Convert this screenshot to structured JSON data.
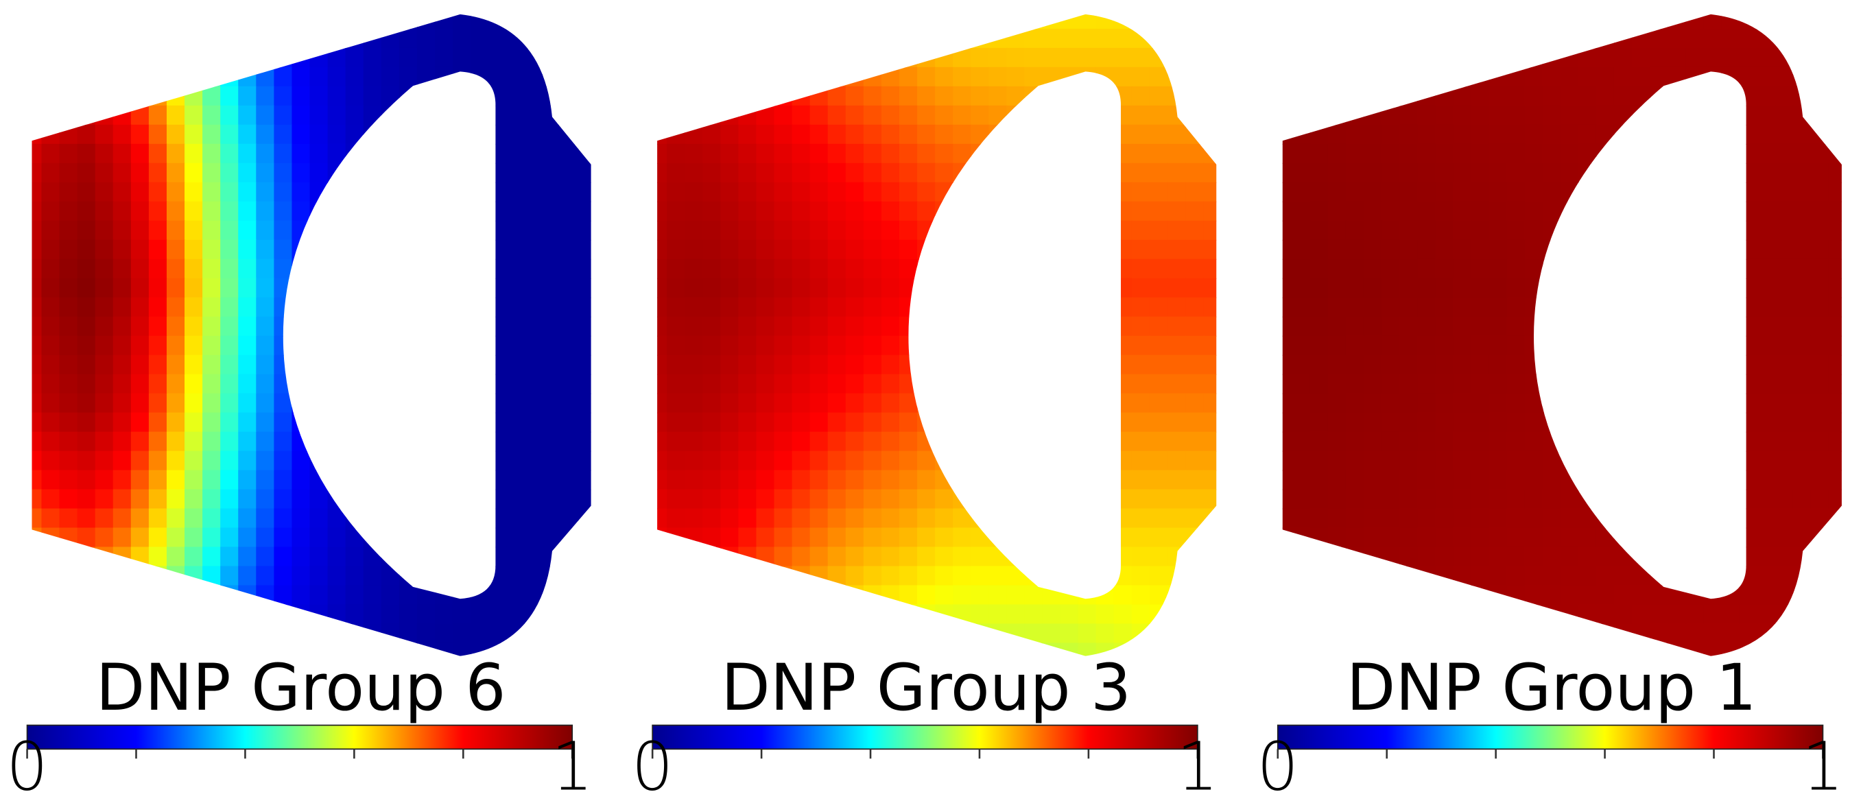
{
  "panels": [
    {
      "title": "DNP Group 6",
      "scale_min": "0",
      "scale_max": "1",
      "levels": [
        [
          0.9,
          0.97,
          0.99,
          0.95,
          0.85,
          0.7,
          0.55,
          0.42,
          0.3,
          0.2,
          0.13,
          0.08,
          0.05,
          0.03,
          0.02,
          0.02,
          0.02,
          0.02,
          0.02
        ],
        [
          0.86,
          0.92,
          0.94,
          0.88,
          0.78,
          0.64,
          0.5,
          0.38,
          0.27,
          0.18,
          0.12,
          0.07,
          0.05,
          0.03,
          0.02,
          0.02,
          0.02,
          0.02,
          0.02
        ],
        [
          0.7,
          0.74,
          0.76,
          0.72,
          0.64,
          0.53,
          0.42,
          0.31,
          0.22,
          0.15,
          0.1,
          0.06,
          0.04,
          0.03,
          0.02,
          0.02,
          0.02,
          0.02,
          0.02
        ],
        [
          0.5,
          0.53,
          0.54,
          0.52,
          0.46,
          0.38,
          0.3,
          0.22,
          0.16,
          0.11,
          0.07,
          0.05,
          0.03,
          0.02,
          0.02,
          0.02,
          0.02,
          0.02,
          0.02
        ]
      ]
    },
    {
      "title": "DNP Group 3",
      "scale_min": "0",
      "scale_max": "1",
      "levels": [
        [
          0.93,
          0.95,
          0.95,
          0.93,
          0.91,
          0.89,
          0.86,
          0.84,
          0.82,
          0.8,
          0.79,
          0.78,
          0.77,
          0.77,
          0.77,
          0.76,
          0.76,
          0.76,
          0.76
        ],
        [
          0.9,
          0.92,
          0.91,
          0.88,
          0.85,
          0.82,
          0.79,
          0.77,
          0.75,
          0.73,
          0.72,
          0.71,
          0.7,
          0.7,
          0.7,
          0.7,
          0.7,
          0.7,
          0.7
        ],
        [
          0.82,
          0.84,
          0.83,
          0.79,
          0.75,
          0.72,
          0.69,
          0.67,
          0.66,
          0.64,
          0.63,
          0.63,
          0.63,
          0.63,
          0.63,
          0.63,
          0.63,
          0.63,
          0.63
        ],
        [
          0.72,
          0.73,
          0.71,
          0.67,
          0.64,
          0.61,
          0.59,
          0.57,
          0.56,
          0.55,
          0.55,
          0.55,
          0.55,
          0.55,
          0.56,
          0.57,
          0.58,
          0.58,
          0.58
        ]
      ]
    },
    {
      "title": "DNP Group 1",
      "scale_min": "0",
      "scale_max": "1",
      "levels": [
        [
          0.985,
          0.985,
          0.98,
          0.98,
          0.975,
          0.975,
          0.97,
          0.97,
          0.965,
          0.965,
          0.96,
          0.96,
          0.955,
          0.955,
          0.955,
          0.955,
          0.955,
          0.955,
          0.955
        ],
        [
          0.975,
          0.975,
          0.972,
          0.97,
          0.968,
          0.965,
          0.962,
          0.96,
          0.958,
          0.955,
          0.953,
          0.952,
          0.95,
          0.95,
          0.95,
          0.95,
          0.95,
          0.95,
          0.95
        ],
        [
          0.965,
          0.965,
          0.962,
          0.96,
          0.958,
          0.955,
          0.952,
          0.95,
          0.948,
          0.946,
          0.945,
          0.944,
          0.943,
          0.943,
          0.943,
          0.943,
          0.943,
          0.943,
          0.943
        ],
        [
          0.955,
          0.955,
          0.952,
          0.95,
          0.948,
          0.946,
          0.944,
          0.942,
          0.94,
          0.939,
          0.938,
          0.937,
          0.936,
          0.936,
          0.936,
          0.936,
          0.936,
          0.936,
          0.936
        ]
      ]
    }
  ],
  "colormap": [
    "#00008f",
    "#0000ff",
    "#00ffff",
    "#ffff00",
    "#ff0000",
    "#800000"
  ]
}
